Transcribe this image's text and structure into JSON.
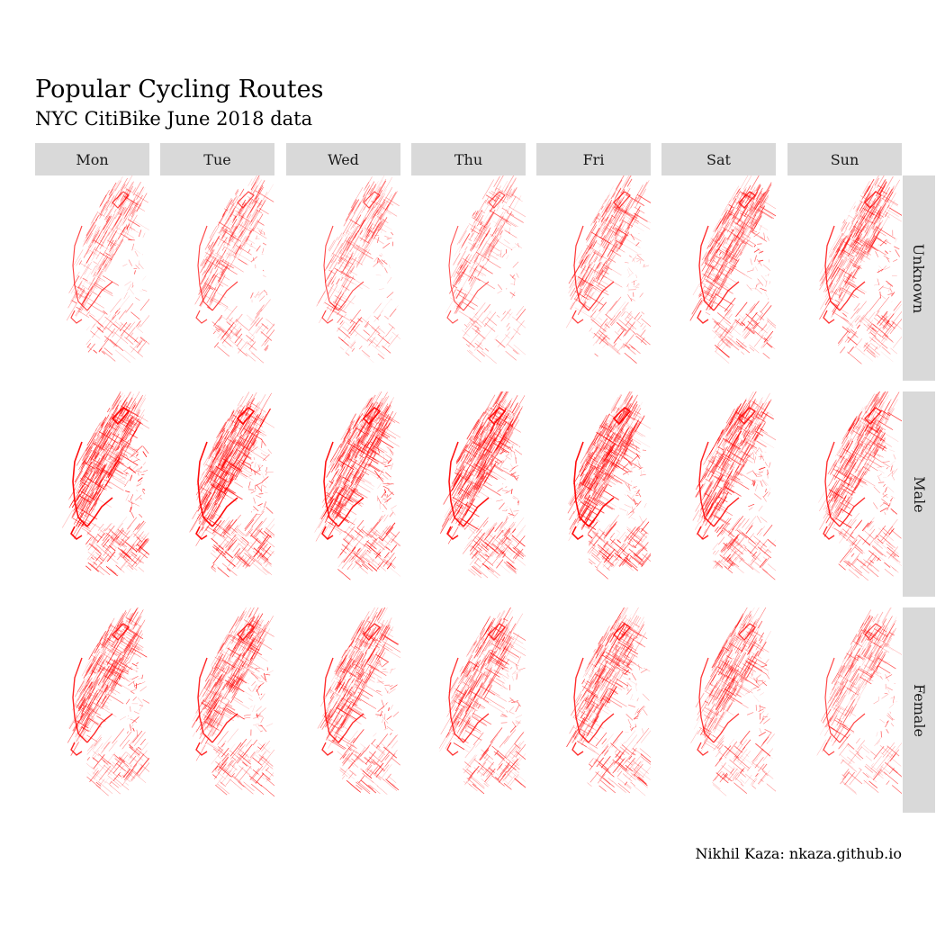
{
  "title": "Popular Cycling Routes",
  "subtitle": "NYC CitiBike June 2018 data",
  "caption": "Nikhil Kaza: nkaza.github.io",
  "chart_data": {
    "type": "small-multiples route map",
    "columns": [
      "Mon",
      "Tue",
      "Wed",
      "Thu",
      "Fri",
      "Sat",
      "Sun"
    ],
    "rows": [
      "Unknown",
      "Male",
      "Female"
    ],
    "route_color": "#ff0000",
    "relative_route_density": [
      [
        0.45,
        0.45,
        0.4,
        0.35,
        0.55,
        0.7,
        0.65
      ],
      [
        1.0,
        1.0,
        0.95,
        0.95,
        1.0,
        0.8,
        0.7
      ],
      [
        0.75,
        0.75,
        0.7,
        0.65,
        0.7,
        0.6,
        0.45
      ]
    ]
  }
}
